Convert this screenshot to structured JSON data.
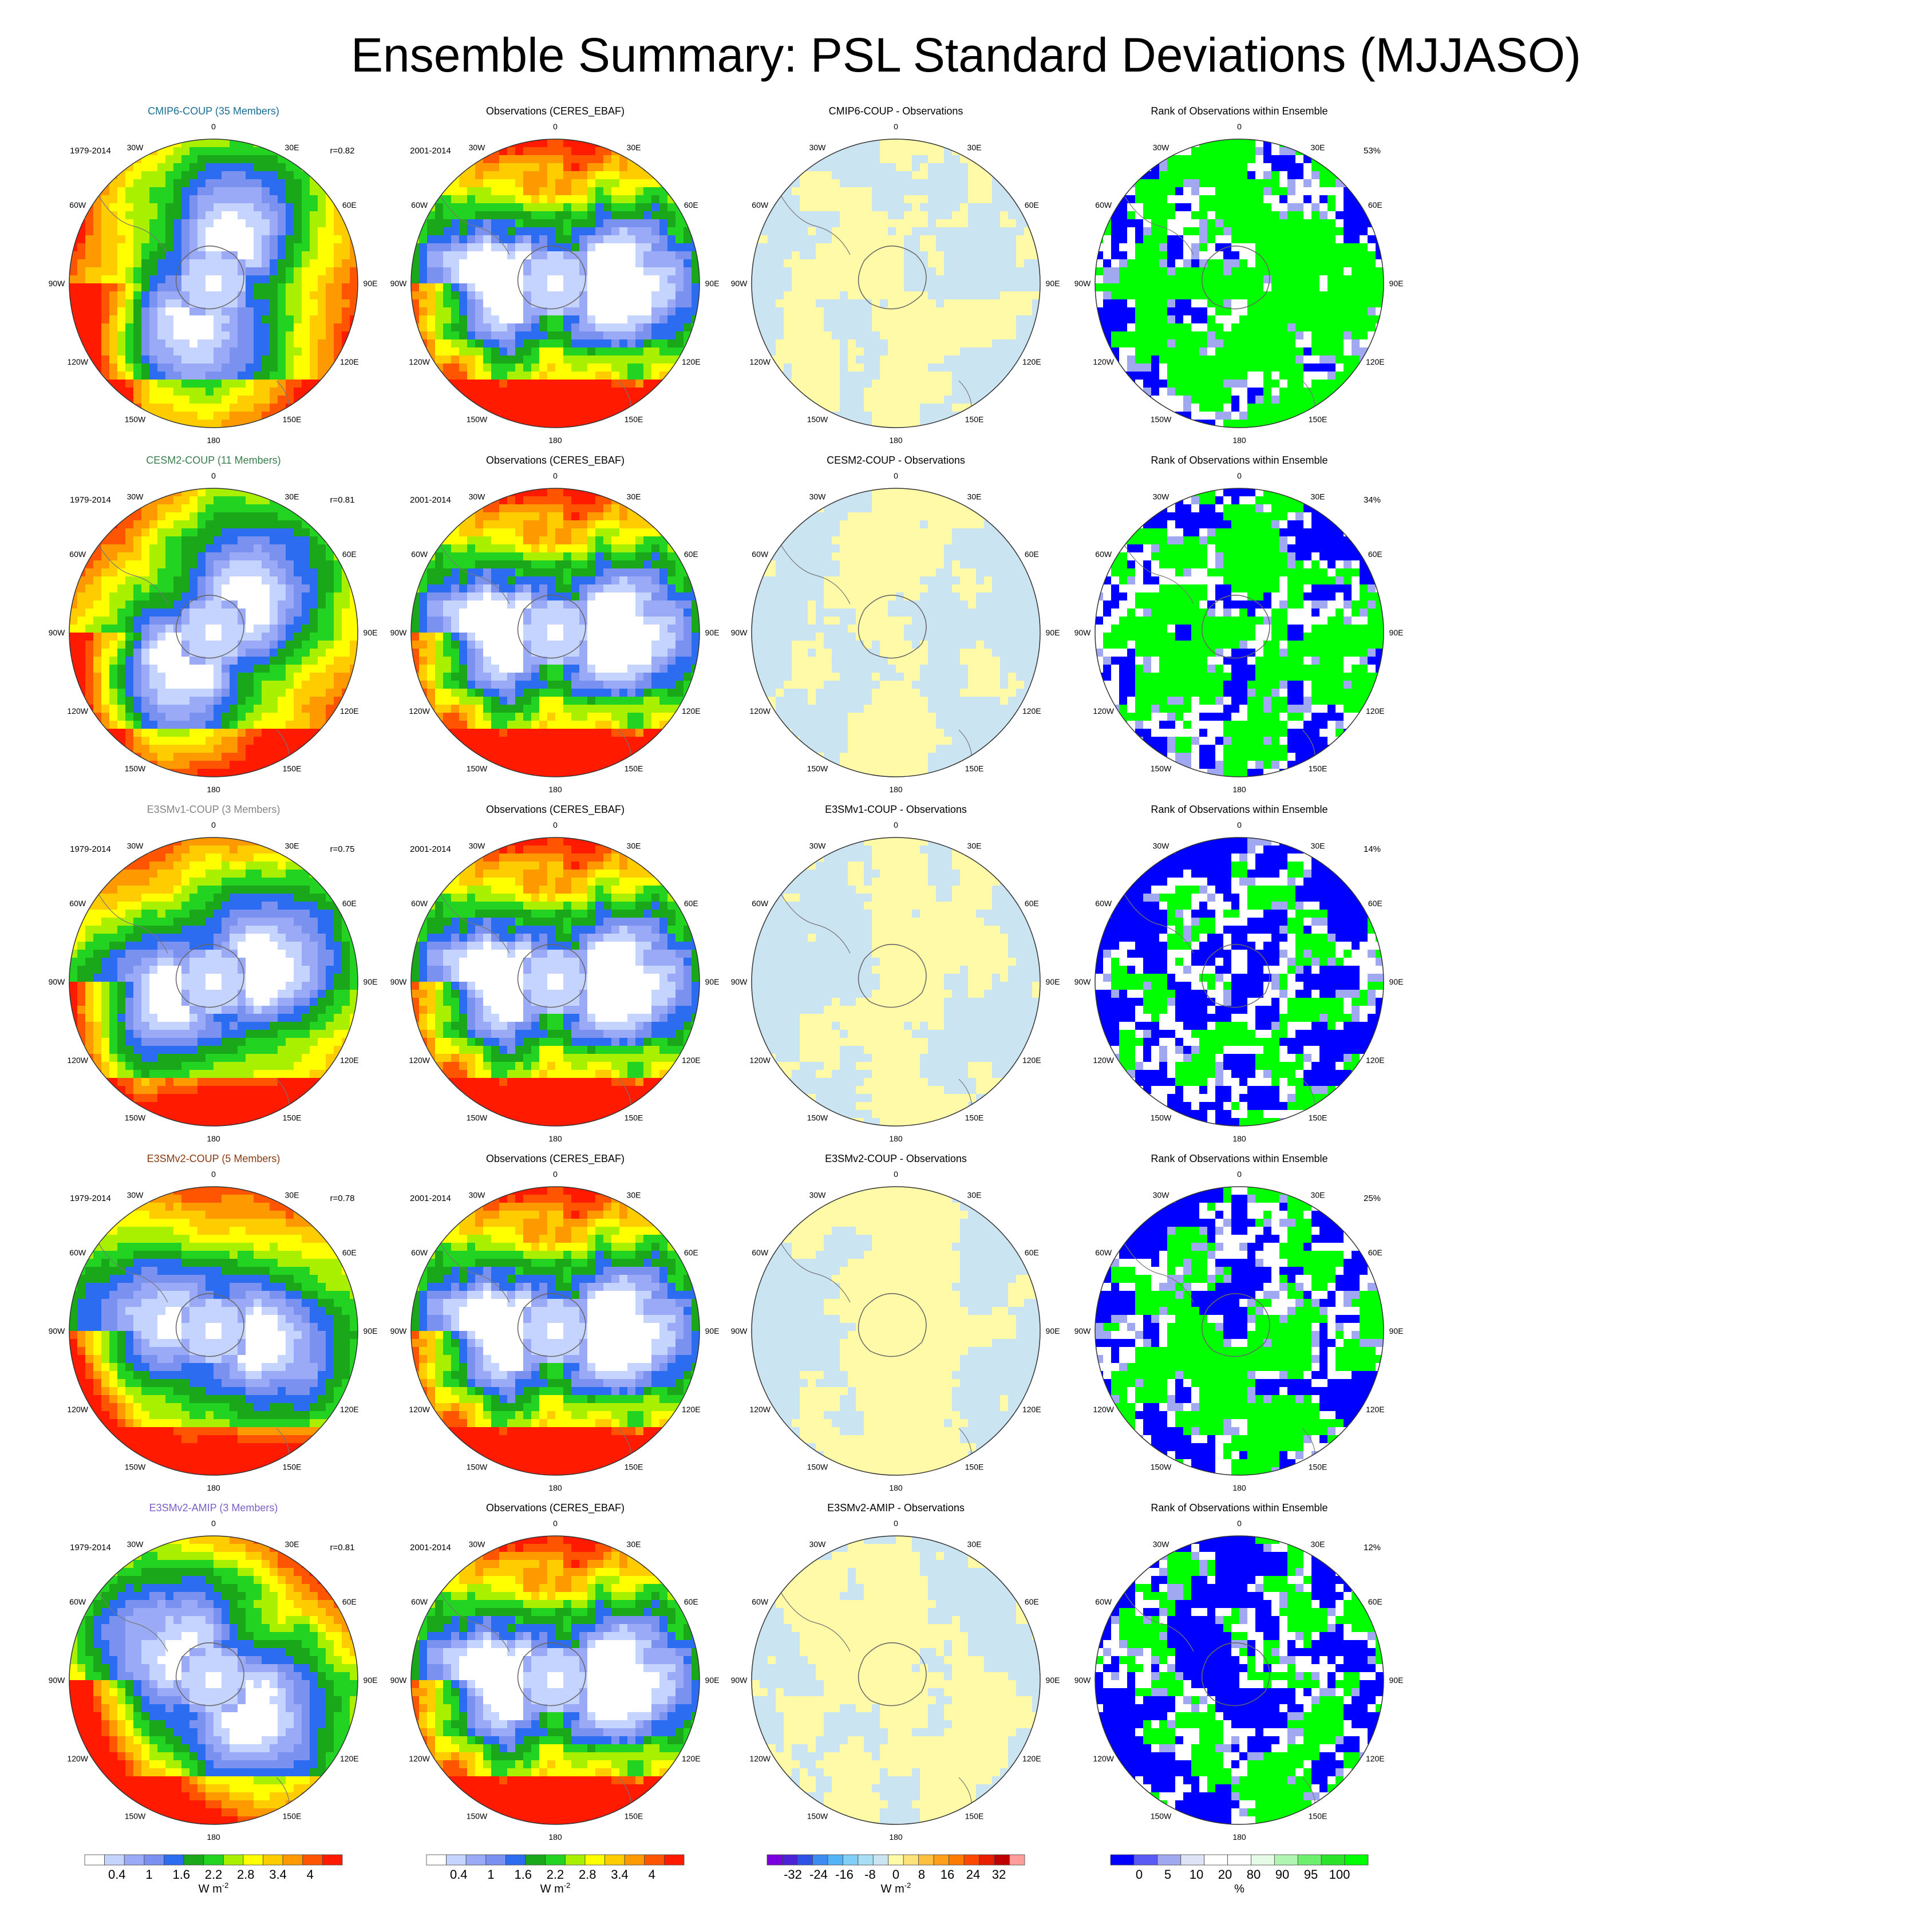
{
  "title": "Ensemble Summary: PSL Standard Deviations (MJJASO)",
  "colors": {
    "std": [
      "#ffffff",
      "#c5d3ff",
      "#9aaaf7",
      "#7b91f0",
      "#2b6cf0",
      "#1aa81a",
      "#22d322",
      "#a8f000",
      "#ffff00",
      "#ffcc00",
      "#ff9900",
      "#ff5500",
      "#ff1a00"
    ],
    "diff": [
      "#7a00e0",
      "#4b22d6",
      "#2f52e6",
      "#3d8df0",
      "#53b3f6",
      "#7fcff7",
      "#a9dff5",
      "#cbe4f2",
      "#fffaa8",
      "#ffe27a",
      "#ffc040",
      "#ff9f1a",
      "#ff7a00",
      "#ff4800",
      "#e81e00",
      "#c00000",
      "#ff9c9c"
    ],
    "rank": [
      "#0000ff",
      "#5a5af5",
      "#a0a8f0",
      "#dfe3f6",
      "#ffffff",
      "#ffffff",
      "#e5fbe5",
      "#b2f5b2",
      "#6ef06e",
      "#2ae32a",
      "#00ff00"
    ],
    "title_colors": [
      "#1b6e93",
      "#3a7e4e",
      "#858585",
      "#8a3a12",
      "#7b60c6"
    ]
  },
  "rows": [
    {
      "model_title": "CMIP6-COUP (35 Members)",
      "period": "1979-2014",
      "r": "r=0.82",
      "diff_title": "CMIP6-COUP - Observations",
      "rank_pct": "53%"
    },
    {
      "model_title": "CESM2-COUP (11 Members)",
      "period": "1979-2014",
      "r": "r=0.81",
      "diff_title": "CESM2-COUP - Observations",
      "rank_pct": "34%"
    },
    {
      "model_title": "E3SMv1-COUP (3 Members)",
      "period": "1979-2014",
      "r": "r=0.75",
      "diff_title": "E3SMv1-COUP - Observations",
      "rank_pct": "14%"
    },
    {
      "model_title": "E3SMv2-COUP (5 Members)",
      "period": "1979-2014",
      "r": "r=0.78",
      "diff_title": "E3SMv2-COUP - Observations",
      "rank_pct": "25%"
    },
    {
      "model_title": "E3SMv2-AMIP (3 Members)",
      "period": "1979-2014",
      "r": "r=0.81",
      "diff_title": "E3SMv2-AMIP - Observations",
      "rank_pct": "12%"
    }
  ],
  "obs_title": "Observations (CERES_EBAF)",
  "obs_period": "2001-2014",
  "rank_title": "Rank of Observations within Ensemble",
  "lon_labels": [
    "0",
    "30E",
    "60E",
    "90E",
    "120E",
    "150E",
    "180",
    "150W",
    "120W",
    "90W",
    "60W",
    "30W"
  ],
  "colorbars": [
    {
      "ticks": [
        "0.4",
        "1",
        "1.6",
        "2.2",
        "2.8",
        "3.4",
        "4"
      ],
      "units": "W m",
      "sup": "-2"
    },
    {
      "ticks": [
        "0.4",
        "1",
        "1.6",
        "2.2",
        "2.8",
        "3.4",
        "4"
      ],
      "units": "W m",
      "sup": "-2"
    },
    {
      "ticks": [
        "-32",
        "-24",
        "-16",
        "-8",
        "0",
        "8",
        "16",
        "24",
        "32"
      ],
      "units": "W m",
      "sup": "-2"
    },
    {
      "ticks": [
        "0",
        "5",
        "10",
        "20",
        "80",
        "90",
        "95",
        "100"
      ],
      "units": "%",
      "sup": ""
    }
  ]
}
